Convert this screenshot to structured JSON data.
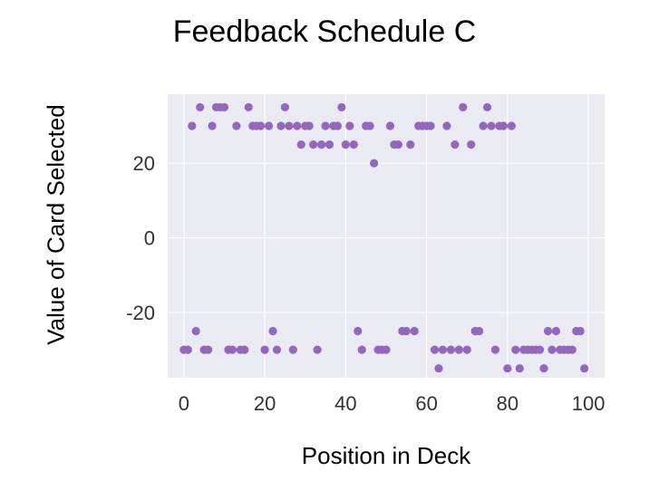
{
  "chart_data": {
    "type": "scatter",
    "title": "Feedback Schedule C",
    "xlabel": "Position in Deck",
    "ylabel": "Value of Card Selected",
    "xlim": [
      -4,
      104
    ],
    "ylim": [
      -37.5,
      38.5
    ],
    "xticks": [
      0,
      20,
      40,
      60,
      80,
      100
    ],
    "yticks": [
      -20,
      0,
      20
    ],
    "grid": true,
    "color": "#9467bd",
    "background": "#eaeaf2",
    "series": [
      {
        "x": [
          0,
          1,
          2,
          3,
          4,
          5,
          6,
          7,
          8,
          9,
          10,
          11,
          12,
          13,
          14,
          15,
          16,
          17,
          18,
          19,
          20,
          21,
          22,
          23,
          24,
          25,
          26,
          27,
          28,
          29,
          30,
          31,
          32,
          33,
          34,
          35,
          36,
          37,
          38,
          39,
          40,
          41,
          42,
          43,
          44,
          45,
          46,
          47,
          48,
          49,
          50,
          51,
          52,
          53,
          54,
          55,
          56,
          57,
          58,
          59,
          60,
          61,
          62,
          63,
          64,
          65,
          66,
          67,
          68,
          69,
          70,
          71,
          72,
          73,
          74,
          75,
          76,
          77,
          78,
          79,
          80,
          81,
          82,
          83,
          84,
          85,
          86,
          87,
          88,
          89,
          90,
          91,
          92,
          93,
          94,
          95,
          96,
          97,
          98,
          99
        ],
        "y": [
          -30,
          -30,
          30,
          -25,
          35,
          -30,
          -30,
          30,
          35,
          35,
          35,
          -30,
          -30,
          30,
          -30,
          -30,
          35,
          30,
          30,
          30,
          -30,
          30,
          -25,
          -30,
          30,
          35,
          30,
          -30,
          30,
          25,
          30,
          30,
          25,
          -30,
          25,
          30,
          25,
          30,
          30,
          35,
          25,
          30,
          25,
          -25,
          -30,
          30,
          30,
          20,
          -30,
          -30,
          -30,
          30,
          25,
          25,
          -25,
          -25,
          25,
          -25,
          30,
          30,
          30,
          30,
          -30,
          -35,
          -30,
          30,
          -30,
          25,
          -30,
          35,
          -30,
          25,
          -25,
          -25,
          30,
          35,
          30,
          -30,
          30,
          30,
          -35,
          30,
          -30,
          -35,
          -30,
          -30,
          -30,
          -30,
          -30,
          -35,
          -25,
          -30,
          -25,
          -30,
          -30,
          -30,
          -30,
          -25,
          -25,
          -35
        ]
      }
    ]
  }
}
